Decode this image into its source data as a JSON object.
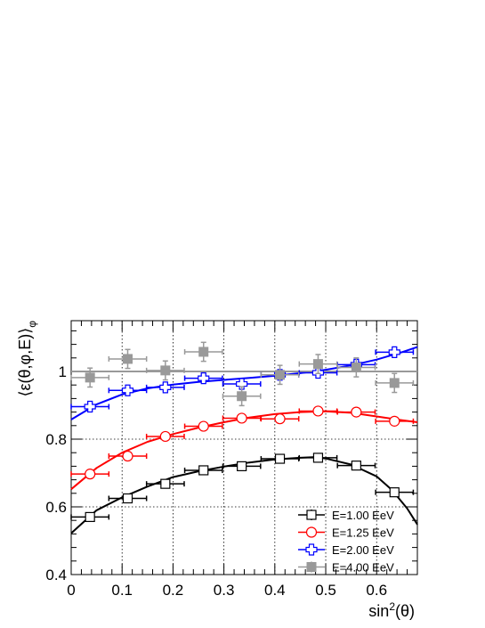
{
  "chart_data": {
    "type": "scatter",
    "xlabel_base": "sin",
    "xlabel_sup": "2",
    "xlabel_arg": "(θ)",
    "ylabel_main": "⟨ε(θ,φ,E)⟩",
    "ylabel_sub": "φ",
    "xlim": [
      0,
      0.68
    ],
    "ylim": [
      0.4,
      1.15
    ],
    "x_ticks": [
      {
        "v": 0,
        "label": "0"
      },
      {
        "v": 0.1,
        "label": "0.1"
      },
      {
        "v": 0.2,
        "label": "0.2"
      },
      {
        "v": 0.3,
        "label": "0.3"
      },
      {
        "v": 0.4,
        "label": "0.4"
      },
      {
        "v": 0.5,
        "label": "0.5"
      },
      {
        "v": 0.6,
        "label": "0.6"
      }
    ],
    "y_ticks": [
      {
        "v": 0.4,
        "label": "0.4"
      },
      {
        "v": 0.6,
        "label": "0.6"
      },
      {
        "v": 0.8,
        "label": "0.8"
      },
      {
        "v": 1.0,
        "label": "1"
      }
    ],
    "grid": true,
    "legend_position": "bottom-right",
    "xerr": 0.037,
    "series": [
      {
        "name": "E=1.00 EeV",
        "color": "#000000",
        "marker": "open-square",
        "x": [
          0.037,
          0.111,
          0.185,
          0.26,
          0.335,
          0.41,
          0.485,
          0.56,
          0.635
        ],
        "y": [
          0.57,
          0.625,
          0.668,
          0.708,
          0.72,
          0.742,
          0.745,
          0.722,
          0.643
        ],
        "yerr": 0.006,
        "fit": [
          [
            0,
            0.522
          ],
          [
            0.05,
            0.59
          ],
          [
            0.1,
            0.628
          ],
          [
            0.15,
            0.66
          ],
          [
            0.2,
            0.688
          ],
          [
            0.25,
            0.705
          ],
          [
            0.3,
            0.719
          ],
          [
            0.35,
            0.731
          ],
          [
            0.4,
            0.74
          ],
          [
            0.45,
            0.745
          ],
          [
            0.48,
            0.747
          ],
          [
            0.5,
            0.743
          ],
          [
            0.55,
            0.725
          ],
          [
            0.6,
            0.69
          ],
          [
            0.63,
            0.65
          ],
          [
            0.66,
            0.595
          ],
          [
            0.68,
            0.548
          ]
        ]
      },
      {
        "name": "E=1.25 EeV",
        "color": "#ff0000",
        "marker": "open-circle",
        "x": [
          0.037,
          0.111,
          0.185,
          0.26,
          0.335,
          0.41,
          0.485,
          0.56,
          0.635
        ],
        "y": [
          0.697,
          0.75,
          0.808,
          0.838,
          0.862,
          0.86,
          0.883,
          0.88,
          0.853
        ],
        "yerr": 0.006,
        "fit": [
          [
            0,
            0.652
          ],
          [
            0.05,
            0.715
          ],
          [
            0.1,
            0.76
          ],
          [
            0.15,
            0.792
          ],
          [
            0.2,
            0.815
          ],
          [
            0.25,
            0.834
          ],
          [
            0.3,
            0.85
          ],
          [
            0.35,
            0.864
          ],
          [
            0.4,
            0.874
          ],
          [
            0.45,
            0.88
          ],
          [
            0.5,
            0.882
          ],
          [
            0.55,
            0.878
          ],
          [
            0.6,
            0.867
          ],
          [
            0.65,
            0.856
          ],
          [
            0.68,
            0.85
          ]
        ]
      },
      {
        "name": "E=2.00 EeV",
        "color": "#0000ff",
        "marker": "open-cross",
        "x": [
          0.037,
          0.111,
          0.185,
          0.26,
          0.335,
          0.41,
          0.485,
          0.56,
          0.635
        ],
        "y": [
          0.896,
          0.944,
          0.953,
          0.98,
          0.963,
          0.99,
          0.996,
          1.02,
          1.057
        ],
        "yerr": 0.012,
        "fit": [
          [
            0,
            0.858
          ],
          [
            0.05,
            0.903
          ],
          [
            0.1,
            0.932
          ],
          [
            0.15,
            0.95
          ],
          [
            0.2,
            0.961
          ],
          [
            0.25,
            0.969
          ],
          [
            0.3,
            0.975
          ],
          [
            0.35,
            0.981
          ],
          [
            0.4,
            0.987
          ],
          [
            0.45,
            0.995
          ],
          [
            0.5,
            1.005
          ],
          [
            0.55,
            1.018
          ],
          [
            0.6,
            1.035
          ],
          [
            0.65,
            1.057
          ],
          [
            0.68,
            1.072
          ]
        ]
      },
      {
        "name": "E=4.00 EeV",
        "color": "#999999",
        "marker": "filled-square",
        "x": [
          0.037,
          0.111,
          0.185,
          0.26,
          0.335,
          0.41,
          0.485,
          0.56,
          0.635
        ],
        "y": [
          0.982,
          1.037,
          1.003,
          1.058,
          0.927,
          0.99,
          1.022,
          1.012,
          0.966
        ],
        "yerr": 0.028,
        "fit": [
          [
            0,
            1.0
          ],
          [
            0.68,
            1.0
          ]
        ]
      }
    ]
  }
}
